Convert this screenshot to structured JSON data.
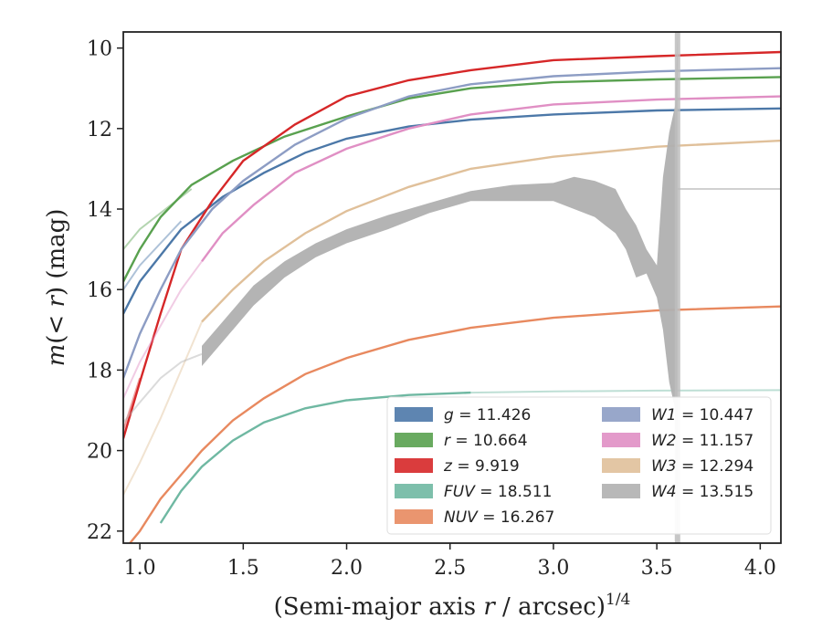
{
  "chart_data": {
    "type": "line",
    "title": "",
    "xlabel": "(Semi-major axis r / arcsec)",
    "xlabel_var": "r",
    "xlabel_prefix": "(Semi-major axis ",
    "xlabel_suffix": " / arcsec)",
    "xlabel_exponent": "1/4",
    "ylabel": "m(< r) (mag)",
    "ylabel_m": "m",
    "ylabel_mid": "(< ",
    "ylabel_r": "r",
    "ylabel_end": ") (mag)",
    "xlim": [
      0.92,
      4.1
    ],
    "ylim": [
      22.3,
      9.6
    ],
    "y_inverted": true,
    "xticks": [
      1.0,
      1.5,
      2.0,
      2.5,
      3.0,
      3.5,
      4.0
    ],
    "xtick_labels": [
      "1.0",
      "1.5",
      "2.0",
      "2.5",
      "3.0",
      "3.5",
      "4.0"
    ],
    "yticks": [
      10,
      12,
      14,
      16,
      18,
      20,
      22
    ],
    "ytick_labels": [
      "10",
      "12",
      "14",
      "16",
      "18",
      "20",
      "22"
    ],
    "grid": false,
    "legend_position": "lower-right",
    "legend_columns": 2,
    "vertical_band": {
      "x": 3.6,
      "color": "#bdbdbd"
    },
    "series": [
      {
        "name": "g",
        "total": "11.426",
        "color": "#4c78a8",
        "points": [
          [
            0.92,
            16.6
          ],
          [
            1.0,
            15.8
          ],
          [
            1.2,
            14.5
          ],
          [
            1.4,
            13.7
          ],
          [
            1.6,
            13.1
          ],
          [
            1.8,
            12.6
          ],
          [
            2.0,
            12.25
          ],
          [
            2.3,
            11.95
          ],
          [
            2.6,
            11.78
          ],
          [
            3.0,
            11.65
          ],
          [
            3.5,
            11.55
          ],
          [
            4.1,
            11.5
          ]
        ],
        "faint": [
          [
            0.92,
            16.0
          ],
          [
            1.0,
            15.4
          ],
          [
            1.2,
            14.3
          ]
        ]
      },
      {
        "name": "r",
        "total": "10.664",
        "color": "#59a14f",
        "points": [
          [
            0.92,
            15.8
          ],
          [
            1.0,
            15.0
          ],
          [
            1.1,
            14.2
          ],
          [
            1.25,
            13.4
          ],
          [
            1.45,
            12.8
          ],
          [
            1.7,
            12.2
          ],
          [
            2.0,
            11.7
          ],
          [
            2.3,
            11.25
          ],
          [
            2.6,
            11.0
          ],
          [
            3.0,
            10.85
          ],
          [
            3.5,
            10.78
          ],
          [
            4.1,
            10.72
          ]
        ],
        "faint": [
          [
            0.92,
            15.0
          ],
          [
            1.0,
            14.5
          ],
          [
            1.15,
            13.9
          ],
          [
            1.25,
            13.5
          ]
        ]
      },
      {
        "name": "z",
        "total": "9.919",
        "color": "#d62728",
        "points": [
          [
            0.92,
            19.7
          ],
          [
            1.0,
            18.3
          ],
          [
            1.1,
            16.6
          ],
          [
            1.2,
            15.0
          ],
          [
            1.35,
            13.8
          ],
          [
            1.5,
            12.8
          ],
          [
            1.75,
            11.9
          ],
          [
            2.0,
            11.2
          ],
          [
            2.3,
            10.8
          ],
          [
            2.6,
            10.55
          ],
          [
            3.0,
            10.3
          ],
          [
            3.5,
            10.2
          ],
          [
            4.1,
            10.1
          ]
        ],
        "faint": [
          [
            0.92,
            19.5
          ],
          [
            1.0,
            18.2
          ]
        ]
      },
      {
        "name": "FUV",
        "total": "18.511",
        "color": "#6fb8a2",
        "points": [
          [
            1.1,
            21.8
          ],
          [
            1.2,
            21.0
          ],
          [
            1.3,
            20.4
          ],
          [
            1.45,
            19.75
          ],
          [
            1.6,
            19.3
          ],
          [
            1.8,
            18.95
          ],
          [
            2.0,
            18.75
          ],
          [
            2.3,
            18.62
          ],
          [
            2.6,
            18.56
          ]
        ],
        "faint": [
          [
            2.6,
            18.56
          ],
          [
            3.0,
            18.53
          ],
          [
            3.5,
            18.51
          ],
          [
            4.1,
            18.5
          ]
        ]
      },
      {
        "name": "NUV",
        "total": "16.267",
        "color": "#e8895f",
        "points": [
          [
            0.92,
            22.5
          ],
          [
            1.0,
            22.0
          ],
          [
            1.1,
            21.2
          ],
          [
            1.2,
            20.6
          ],
          [
            1.3,
            20.0
          ],
          [
            1.45,
            19.25
          ],
          [
            1.6,
            18.7
          ],
          [
            1.8,
            18.1
          ],
          [
            2.0,
            17.7
          ],
          [
            2.3,
            17.25
          ],
          [
            2.6,
            16.95
          ],
          [
            3.0,
            16.7
          ],
          [
            3.5,
            16.52
          ],
          [
            4.1,
            16.42
          ]
        ],
        "faint": [
          [
            3.5,
            16.52
          ],
          [
            4.1,
            16.42
          ]
        ]
      },
      {
        "name": "W1",
        "total": "10.447",
        "color": "#8d9dc4",
        "points": [
          [
            0.92,
            18.2
          ],
          [
            1.0,
            17.1
          ],
          [
            1.1,
            16.0
          ],
          [
            1.2,
            15.0
          ],
          [
            1.35,
            14.0
          ],
          [
            1.5,
            13.3
          ],
          [
            1.75,
            12.4
          ],
          [
            2.0,
            11.75
          ],
          [
            2.3,
            11.2
          ],
          [
            2.6,
            10.9
          ],
          [
            3.0,
            10.7
          ],
          [
            3.5,
            10.58
          ],
          [
            4.1,
            10.5
          ]
        ],
        "faint": [
          [
            0.92,
            18.2
          ],
          [
            1.0,
            17.1
          ],
          [
            1.1,
            16.0
          ]
        ]
      },
      {
        "name": "W2",
        "total": "11.157",
        "color": "#e08fc4",
        "points": [
          [
            1.3,
            15.3
          ],
          [
            1.4,
            14.6
          ],
          [
            1.55,
            13.9
          ],
          [
            1.75,
            13.1
          ],
          [
            2.0,
            12.5
          ],
          [
            2.3,
            12.0
          ],
          [
            2.6,
            11.65
          ],
          [
            3.0,
            11.4
          ],
          [
            3.5,
            11.28
          ],
          [
            4.1,
            11.2
          ]
        ],
        "faint": [
          [
            0.92,
            18.7
          ],
          [
            1.0,
            17.8
          ],
          [
            1.1,
            16.9
          ],
          [
            1.2,
            16.0
          ],
          [
            1.3,
            15.3
          ]
        ]
      },
      {
        "name": "W3",
        "total": "12.294",
        "color": "#e0c09a",
        "points": [
          [
            1.3,
            16.8
          ],
          [
            1.45,
            16.0
          ],
          [
            1.6,
            15.3
          ],
          [
            1.8,
            14.6
          ],
          [
            2.0,
            14.05
          ],
          [
            2.3,
            13.45
          ],
          [
            2.6,
            13.0
          ],
          [
            3.0,
            12.7
          ],
          [
            3.5,
            12.45
          ],
          [
            4.1,
            12.3
          ]
        ],
        "faint": [
          [
            0.92,
            21.1
          ],
          [
            1.0,
            20.3
          ],
          [
            1.1,
            19.2
          ],
          [
            1.2,
            18.0
          ],
          [
            1.3,
            16.8
          ]
        ]
      },
      {
        "name": "W4",
        "total": "13.515",
        "color": "#b0b0b0",
        "band_upper": [
          [
            1.3,
            17.4
          ],
          [
            1.4,
            16.8
          ],
          [
            1.55,
            15.9
          ],
          [
            1.7,
            15.3
          ],
          [
            1.85,
            14.85
          ],
          [
            2.0,
            14.5
          ],
          [
            2.2,
            14.15
          ],
          [
            2.4,
            13.85
          ],
          [
            2.6,
            13.55
          ],
          [
            2.8,
            13.4
          ],
          [
            3.0,
            13.35
          ],
          [
            3.1,
            13.2
          ],
          [
            3.2,
            13.3
          ],
          [
            3.3,
            13.5
          ],
          [
            3.35,
            14.0
          ],
          [
            3.4,
            14.4
          ],
          [
            3.45,
            15.0
          ],
          [
            3.5,
            15.4
          ],
          [
            3.53,
            13.2
          ],
          [
            3.56,
            12.1
          ],
          [
            3.59,
            11.4
          ],
          [
            3.6,
            9.6
          ]
        ],
        "band_lower": [
          [
            3.6,
            22.3
          ],
          [
            3.59,
            19.0
          ],
          [
            3.56,
            18.3
          ],
          [
            3.53,
            17.0
          ],
          [
            3.5,
            16.2
          ],
          [
            3.45,
            15.6
          ],
          [
            3.4,
            15.7
          ],
          [
            3.35,
            15.0
          ],
          [
            3.3,
            14.6
          ],
          [
            3.25,
            14.4
          ],
          [
            3.2,
            14.2
          ],
          [
            3.1,
            14.0
          ],
          [
            3.0,
            13.8
          ],
          [
            2.8,
            13.8
          ],
          [
            2.6,
            13.8
          ],
          [
            2.4,
            14.1
          ],
          [
            2.2,
            14.5
          ],
          [
            2.0,
            14.85
          ],
          [
            1.85,
            15.2
          ],
          [
            1.7,
            15.7
          ],
          [
            1.55,
            16.4
          ],
          [
            1.4,
            17.3
          ],
          [
            1.3,
            17.9
          ]
        ],
        "faint": [
          [
            0.92,
            19.3
          ],
          [
            1.0,
            18.8
          ],
          [
            1.1,
            18.2
          ],
          [
            1.2,
            17.8
          ],
          [
            1.3,
            17.6
          ]
        ],
        "faint_tail": [
          [
            3.6,
            13.5
          ],
          [
            4.1,
            13.5
          ]
        ]
      }
    ]
  }
}
